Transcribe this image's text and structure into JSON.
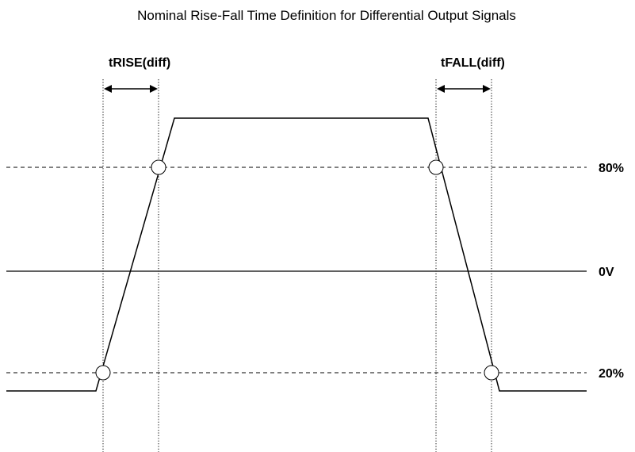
{
  "diagram": {
    "title": "Nominal Rise-Fall Time Definition for Differential Output Signals",
    "rise_label": "tRISE(diff)",
    "fall_label": "tFALL(diff)",
    "levels": {
      "high": "80%",
      "zero": "0V",
      "low": "20%"
    }
  }
}
